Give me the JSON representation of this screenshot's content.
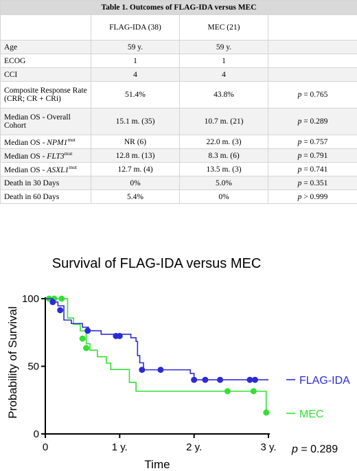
{
  "table": {
    "title": "Table 1. Outcomes of FLAG-IDA versus MEC",
    "headers": [
      "",
      "FLAG-IDA (38)",
      "MEC (21)",
      ""
    ],
    "rows": [
      {
        "label": "Age",
        "label_italic": "",
        "label_sup": "",
        "flag": "59 y.",
        "mec": "59 y.",
        "p_prefix": "",
        "p": ""
      },
      {
        "label": "ECOG",
        "label_italic": "",
        "label_sup": "",
        "flag": "1",
        "mec": "1",
        "p_prefix": "",
        "p": ""
      },
      {
        "label": "CCI",
        "label_italic": "",
        "label_sup": "",
        "flag": "4",
        "mec": "4",
        "p_prefix": "",
        "p": ""
      },
      {
        "label": "Composite Response Rate (CRR; CR + CRi)",
        "label_italic": "",
        "label_sup": "",
        "flag": "51.4%",
        "mec": "43.8%",
        "p_prefix": "p",
        "p": " = 0.765"
      },
      {
        "label": "Median OS - Overall Cohort",
        "label_italic": "",
        "label_sup": "",
        "flag": "15.1 m. (35)",
        "mec": "10.7 m. (21)",
        "p_prefix": "p",
        "p": " = 0.289"
      },
      {
        "label": "Median OS - ",
        "label_italic": "NPM1",
        "label_sup": "mut",
        "flag": "NR (6)",
        "mec": "22.0 m. (3)",
        "p_prefix": "p",
        "p": " = 0.757"
      },
      {
        "label": "Median OS - ",
        "label_italic": "FLT3",
        "label_sup": "mut",
        "flag": "12.8 m. (13)",
        "mec": "8.3 m. (6)",
        "p_prefix": "p",
        "p": " = 0.791"
      },
      {
        "label": "Median OS - ",
        "label_italic": "ASXL1",
        "label_sup": "mut",
        "flag": "12.7 m. (4)",
        "mec": "13.5 m. (3)",
        "p_prefix": "p",
        "p": " = 0.741"
      },
      {
        "label": "Death in 30 Days",
        "label_italic": "",
        "label_sup": "",
        "flag": "0%",
        "mec": "5.0%",
        "p_prefix": "p",
        "p": " = 0.351"
      },
      {
        "label": "Death in 60 Days",
        "label_italic": "",
        "label_sup": "",
        "flag": "5.4%",
        "mec": "0%",
        "p_prefix": "p",
        "p": " > 0.999"
      }
    ]
  },
  "chart_data": {
    "type": "line",
    "title": "Survival of FLAG-IDA versus MEC",
    "xlabel": "Time",
    "ylabel": "Probability of Survival",
    "xlim": [
      0,
      3
    ],
    "ylim": [
      0,
      100
    ],
    "x_ticks": [
      {
        "v": 0,
        "label": "0"
      },
      {
        "v": 1,
        "label": "1 y."
      },
      {
        "v": 2,
        "label": "2 y."
      },
      {
        "v": 3,
        "label": "3 y."
      }
    ],
    "y_ticks": [
      {
        "v": 0,
        "label": "0"
      },
      {
        "v": 50,
        "label": "50"
      },
      {
        "v": 100,
        "label": "100"
      }
    ],
    "annotation": {
      "prefix": "p",
      "text": " = 0.289"
    },
    "series": [
      {
        "name": "FLAG-IDA",
        "color": "#2b2bd6",
        "steps": [
          [
            0,
            100
          ],
          [
            0.1,
            97.5
          ],
          [
            0.17,
            94.7
          ],
          [
            0.25,
            84.2
          ],
          [
            0.35,
            81.6
          ],
          [
            0.5,
            78.9
          ],
          [
            0.58,
            76.3
          ],
          [
            0.75,
            73.7
          ],
          [
            1.15,
            71.1
          ],
          [
            1.22,
            68.4
          ],
          [
            1.24,
            57.9
          ],
          [
            1.27,
            52.6
          ],
          [
            1.32,
            47.4
          ],
          [
            1.95,
            44.7
          ],
          [
            2.0,
            40.0
          ],
          [
            3.0,
            40.0
          ]
        ],
        "censor": [
          [
            0.1,
            97.5
          ],
          [
            0.2,
            91.5
          ],
          [
            0.57,
            76.3
          ],
          [
            0.95,
            72.4
          ],
          [
            1.0,
            72.4
          ],
          [
            1.3,
            47.4
          ],
          [
            1.55,
            47.4
          ],
          [
            2.0,
            40.0
          ],
          [
            2.15,
            40.0
          ],
          [
            2.35,
            40.0
          ],
          [
            2.75,
            40.0
          ],
          [
            2.82,
            40.0
          ]
        ]
      },
      {
        "name": "MEC",
        "color": "#33e033",
        "steps": [
          [
            0,
            100
          ],
          [
            0.22,
            100
          ],
          [
            0.3,
            85.7
          ],
          [
            0.38,
            81.0
          ],
          [
            0.47,
            76.2
          ],
          [
            0.55,
            66.7
          ],
          [
            0.6,
            61.9
          ],
          [
            0.7,
            57.1
          ],
          [
            0.82,
            52.4
          ],
          [
            0.88,
            47.6
          ],
          [
            1.13,
            38.1
          ],
          [
            1.22,
            31.6
          ],
          [
            2.5,
            31.6
          ],
          [
            2.95,
            31.6
          ],
          [
            2.97,
            15.8
          ]
        ],
        "censor": [
          [
            0.05,
            100
          ],
          [
            0.12,
            100
          ],
          [
            0.22,
            100
          ],
          [
            0.5,
            70.5
          ],
          [
            0.55,
            63.5
          ],
          [
            2.45,
            31.6
          ],
          [
            2.8,
            31.6
          ],
          [
            2.97,
            15.8
          ]
        ]
      }
    ]
  }
}
